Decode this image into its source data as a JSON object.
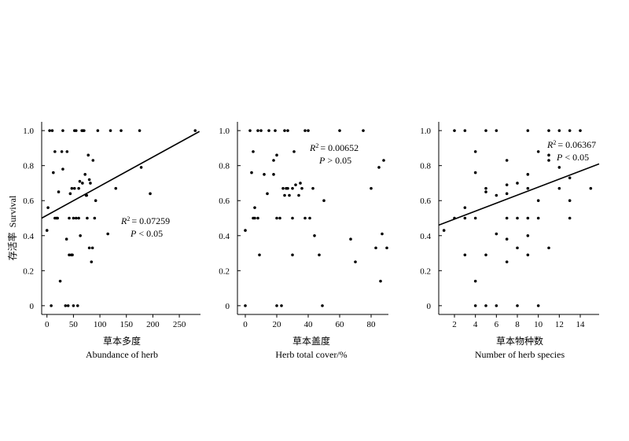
{
  "ylabel_cn": "存活率",
  "ylabel_en": "Survival",
  "chart_data": [
    {
      "type": "scatter",
      "xlabel_cn": "草本多度",
      "xlabel": "Abundance of herb",
      "ylabel": "存活率 Survival",
      "xlim": [
        -10,
        290
      ],
      "ylim": [
        -0.05,
        1.05
      ],
      "xticks": [
        0,
        50,
        100,
        150,
        200,
        250
      ],
      "yticks": [
        0,
        0.2,
        0.4,
        0.6,
        0.8,
        1.0
      ],
      "ytick_labels": [
        "0",
        "0.2",
        "0.4",
        "0.6",
        "0.8",
        "1.0"
      ],
      "annotation_r2_label": "R",
      "annotation_r2_value": "= 0.07259",
      "annotation_p": "< 0.05",
      "regression": {
        "x0": -10,
        "y0": 0.5,
        "x1": 288,
        "y1": 0.995
      },
      "points": [
        [
          0,
          0.43
        ],
        [
          2,
          0.56
        ],
        [
          8,
          0
        ],
        [
          5,
          1
        ],
        [
          10,
          1
        ],
        [
          12,
          0.76
        ],
        [
          15,
          0.88
        ],
        [
          15,
          0.5
        ],
        [
          18,
          0.5
        ],
        [
          20,
          0.5
        ],
        [
          22,
          0.65
        ],
        [
          25,
          0.14
        ],
        [
          28,
          0.88
        ],
        [
          30,
          0.78
        ],
        [
          30,
          1
        ],
        [
          35,
          0
        ],
        [
          37,
          0.38
        ],
        [
          38,
          0.88
        ],
        [
          40,
          0
        ],
        [
          42,
          0.5
        ],
        [
          42,
          0.29
        ],
        [
          44,
          0.64
        ],
        [
          46,
          0.29
        ],
        [
          47,
          0.67
        ],
        [
          48,
          0.29
        ],
        [
          50,
          0.5
        ],
        [
          50,
          0
        ],
        [
          52,
          0.67
        ],
        [
          52,
          1
        ],
        [
          55,
          1
        ],
        [
          55,
          0.5
        ],
        [
          58,
          0
        ],
        [
          60,
          0.67
        ],
        [
          60,
          0.5
        ],
        [
          62,
          0.71
        ],
        [
          63,
          0.4
        ],
        [
          66,
          1
        ],
        [
          67,
          0.7
        ],
        [
          68,
          1
        ],
        [
          70,
          1
        ],
        [
          72,
          0.75
        ],
        [
          74,
          0.63
        ],
        [
          75,
          0.63
        ],
        [
          76,
          0.5
        ],
        [
          78,
          0.86
        ],
        [
          80,
          0.33
        ],
        [
          80,
          0.72
        ],
        [
          82,
          0.7
        ],
        [
          84,
          0.25
        ],
        [
          86,
          0.33
        ],
        [
          87,
          0.83
        ],
        [
          90,
          0.5
        ],
        [
          92,
          0.6
        ],
        [
          96,
          1
        ],
        [
          115,
          0.41
        ],
        [
          120,
          1
        ],
        [
          130,
          0.67
        ],
        [
          140,
          1
        ],
        [
          175,
          1
        ],
        [
          178,
          0.79
        ],
        [
          195,
          0.64
        ],
        [
          280,
          1
        ]
      ]
    },
    {
      "type": "scatter",
      "xlabel_cn": "草本盖度",
      "xlabel": "Herb total cover/%",
      "ylabel": "存活率 Survival",
      "xlim": [
        -5,
        91
      ],
      "ylim": [
        -0.05,
        1.05
      ],
      "xticks": [
        0,
        20,
        40,
        60,
        80
      ],
      "yticks": [
        0,
        0.2,
        0.4,
        0.6,
        0.8,
        1.0
      ],
      "ytick_labels": [
        "0",
        "0.2",
        "0.4",
        "0.6",
        "0.8",
        "1.0"
      ],
      "annotation_r2_label": "R",
      "annotation_r2_value": "= 0.00652",
      "annotation_p": "> 0.05",
      "points": [
        [
          0,
          0.43
        ],
        [
          0,
          0
        ],
        [
          3,
          1
        ],
        [
          4,
          0.76
        ],
        [
          5,
          0.5
        ],
        [
          5,
          0.88
        ],
        [
          6,
          0.5
        ],
        [
          6,
          0.56
        ],
        [
          8,
          1
        ],
        [
          8,
          0.5
        ],
        [
          9,
          0.29
        ],
        [
          10,
          1
        ],
        [
          12,
          0.75
        ],
        [
          14,
          0.64
        ],
        [
          15,
          1
        ],
        [
          18,
          0.83
        ],
        [
          18,
          0.75
        ],
        [
          19,
          1
        ],
        [
          20,
          0.86
        ],
        [
          20,
          0.5
        ],
        [
          20,
          0
        ],
        [
          22,
          0.5
        ],
        [
          23,
          0
        ],
        [
          24,
          0.67
        ],
        [
          25,
          0.63
        ],
        [
          25,
          1
        ],
        [
          26,
          0.67
        ],
        [
          27,
          1
        ],
        [
          27,
          0.67
        ],
        [
          28,
          0.63
        ],
        [
          30,
          0.67
        ],
        [
          30,
          0.5
        ],
        [
          30,
          0.29
        ],
        [
          31,
          0.88
        ],
        [
          32,
          0.69
        ],
        [
          34,
          0.63
        ],
        [
          35,
          0.7
        ],
        [
          36,
          0.67
        ],
        [
          38,
          1
        ],
        [
          38,
          0.5
        ],
        [
          40,
          1
        ],
        [
          41,
          0.5
        ],
        [
          43,
          0.67
        ],
        [
          44,
          0.4
        ],
        [
          47,
          0.29
        ],
        [
          49,
          0
        ],
        [
          50,
          0.6
        ],
        [
          60,
          1
        ],
        [
          67,
          0.38
        ],
        [
          70,
          0.25
        ],
        [
          75,
          1
        ],
        [
          80,
          0.67
        ],
        [
          83,
          0.33
        ],
        [
          85,
          0.79
        ],
        [
          86,
          0.14
        ],
        [
          87,
          0.41
        ],
        [
          88,
          0.83
        ],
        [
          90,
          0.33
        ]
      ]
    },
    {
      "type": "scatter",
      "xlabel_cn": "草本物种数",
      "xlabel": "Number of herb species",
      "ylabel": "存活率 Survival",
      "xlim": [
        0.5,
        15.8
      ],
      "ylim": [
        -0.05,
        1.05
      ],
      "xticks": [
        2,
        4,
        6,
        8,
        10,
        12,
        14
      ],
      "yticks": [
        0,
        0.2,
        0.4,
        0.6,
        0.8,
        1.0
      ],
      "ytick_labels": [
        "0",
        "0.2",
        "0.4",
        "0.6",
        "0.8",
        "1.0"
      ],
      "annotation_r2_label": "R",
      "annotation_r2_value": "= 0.06367",
      "annotation_p": "< 0.05",
      "regression": {
        "x0": 0.5,
        "y0": 0.46,
        "x1": 15.8,
        "y1": 0.81
      },
      "points": [
        [
          1,
          0.43
        ],
        [
          2,
          0.5
        ],
        [
          2,
          1
        ],
        [
          3,
          1
        ],
        [
          3,
          0.56
        ],
        [
          3,
          0.29
        ],
        [
          3,
          0.5
        ],
        [
          4,
          0.88
        ],
        [
          4,
          0.76
        ],
        [
          4,
          0.5
        ],
        [
          4,
          0.14
        ],
        [
          4,
          0
        ],
        [
          5,
          0.67
        ],
        [
          5,
          0.65
        ],
        [
          5,
          0.29
        ],
        [
          5,
          0
        ],
        [
          5,
          1
        ],
        [
          6,
          1
        ],
        [
          6,
          0.41
        ],
        [
          6,
          0.63
        ],
        [
          6,
          0
        ],
        [
          7,
          0.83
        ],
        [
          7,
          0.69
        ],
        [
          7,
          0.5
        ],
        [
          7,
          0.64
        ],
        [
          7,
          0.38
        ],
        [
          7,
          0.25
        ],
        [
          8,
          0.7
        ],
        [
          8,
          0.5
        ],
        [
          8,
          0.33
        ],
        [
          8,
          0
        ],
        [
          9,
          1
        ],
        [
          9,
          0.75
        ],
        [
          9,
          0.67
        ],
        [
          9,
          0.5
        ],
        [
          9,
          0.4
        ],
        [
          9,
          0.29
        ],
        [
          10,
          0.88
        ],
        [
          10,
          0.6
        ],
        [
          10,
          0.5
        ],
        [
          10,
          0
        ],
        [
          11,
          0.86
        ],
        [
          11,
          0.83
        ],
        [
          11,
          1
        ],
        [
          11,
          0.33
        ],
        [
          12,
          0.79
        ],
        [
          12,
          0.67
        ],
        [
          12,
          1
        ],
        [
          13,
          0.73
        ],
        [
          13,
          0.6
        ],
        [
          13,
          0.5
        ],
        [
          13,
          1
        ],
        [
          14,
          1
        ],
        [
          15,
          0.67
        ]
      ]
    }
  ]
}
